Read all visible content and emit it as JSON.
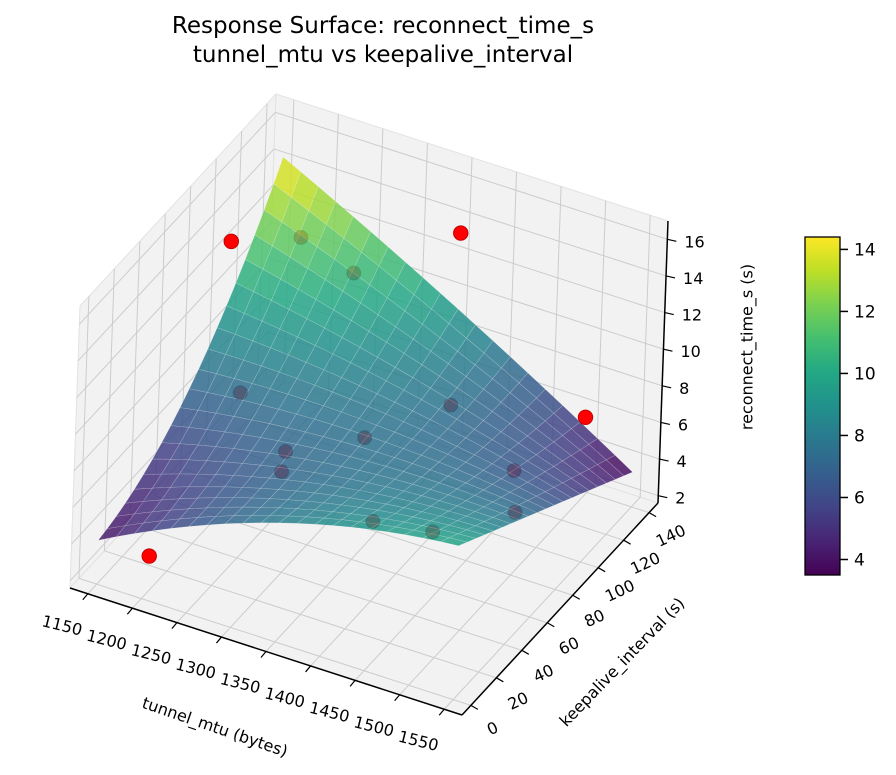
{
  "figure": {
    "title_line1": "Response Surface: reconnect_time_s",
    "title_line2": "tunnel_mtu vs keepalive_interval",
    "background": "#ffffff"
  },
  "chart_data": {
    "type": "surface_3d",
    "title": "Response Surface: reconnect_time_s",
    "subtitle": "tunnel_mtu vs keepalive_interval",
    "xlabel": "tunnel_mtu (bytes)",
    "ylabel": "keepalive_interval (s)",
    "zlabel": "reconnect_time_s (s)",
    "x_ticks": [
      1150,
      1200,
      1250,
      1300,
      1350,
      1400,
      1450,
      1500,
      1550
    ],
    "y_ticks": [
      0,
      20,
      40,
      60,
      80,
      100,
      120,
      140
    ],
    "z_ticks": [
      2,
      4,
      6,
      8,
      10,
      12,
      14,
      16
    ],
    "axis_ranges": {
      "x": [
        1130,
        1570
      ],
      "y": [
        -7,
        147
      ],
      "z": [
        1.6,
        17.0
      ]
    },
    "grid": true,
    "legend": "none",
    "surface": {
      "x_domain": [
        1150,
        1550
      ],
      "y_domain": [
        0,
        140
      ],
      "z_min": 3.5,
      "z_max": 14.4,
      "colormap": "viridis",
      "model_formula": "z = 4.0(1-a)(1-b) + 10.0a(1-b) + 14.4(1-a)b + 3.5ab + 4.4a(1-a)(1-b) + 1.2a(1-a)b - 8.8b(1-b)(1-a),  a=(tunnel_mtu-1150)/400, b=keepalive_interval/140",
      "coeffs": {
        "c00": 4.0,
        "c10": 10.0,
        "c01": 14.4,
        "c11": 3.5,
        "ka": 4.4,
        "kab": 1.2,
        "kb": -8.8
      },
      "z_grid_keepalive_rows": [
        0,
        35,
        70,
        105,
        140
      ],
      "z_grid_mtu_cols": [
        1150,
        1250,
        1350,
        1450,
        1550
      ],
      "z_grid": [
        [
          4.0,
          6.33,
          8.1,
          9.33,
          10.0
        ],
        [
          4.95,
          6.48,
          7.56,
          8.19,
          8.38
        ],
        [
          7.0,
          7.46,
          7.58,
          7.34,
          6.75
        ],
        [
          10.15,
          9.27,
          8.14,
          6.76,
          5.13
        ],
        [
          14.4,
          11.9,
          9.25,
          6.45,
          3.5
        ]
      ]
    },
    "points_above_surface": [
      {
        "tunnel_mtu": 1150,
        "keepalive_interval": 100,
        "reconnect_time_s": 12.8
      },
      {
        "tunnel_mtu": 1350,
        "keepalive_interval": 140,
        "reconnect_time_s": 13.4
      },
      {
        "tunnel_mtu": 1550,
        "keepalive_interval": 100,
        "reconnect_time_s": 9.5
      },
      {
        "tunnel_mtu": 1180,
        "keepalive_interval": 20,
        "reconnect_time_s": 2.1
      }
    ],
    "points_near_surface": [
      {
        "tunnel_mtu": 1200,
        "keepalive_interval": 120,
        "reconnect_time_s": 12.3
      },
      {
        "tunnel_mtu": 1260,
        "keepalive_interval": 120,
        "reconnect_time_s": 11.3
      },
      {
        "tunnel_mtu": 1200,
        "keepalive_interval": 75,
        "reconnect_time_s": 7.2
      },
      {
        "tunnel_mtu": 1400,
        "keepalive_interval": 100,
        "reconnect_time_s": 7.8
      },
      {
        "tunnel_mtu": 1300,
        "keepalive_interval": 40,
        "reconnect_time_s": 8.2
      },
      {
        "tunnel_mtu": 1310,
        "keepalive_interval": 30,
        "reconnect_time_s": 8.0
      },
      {
        "tunnel_mtu": 1360,
        "keepalive_interval": 60,
        "reconnect_time_s": 8.4
      },
      {
        "tunnel_mtu": 1500,
        "keepalive_interval": 80,
        "reconnect_time_s": 7.3
      },
      {
        "tunnel_mtu": 1420,
        "keepalive_interval": 25,
        "reconnect_time_s": 7.4
      },
      {
        "tunnel_mtu": 1480,
        "keepalive_interval": 30,
        "reconnect_time_s": 7.4
      },
      {
        "tunnel_mtu": 1530,
        "keepalive_interval": 60,
        "reconnect_time_s": 7.0
      }
    ],
    "colorbar": {
      "ticks": [
        4,
        6,
        8,
        10,
        12,
        14
      ],
      "vmin": 3.5,
      "vmax": 14.4,
      "colormap": "viridis",
      "position": "right"
    },
    "colors": {
      "point_red": "#ff0000",
      "point_red_edge": "#c40000",
      "pane": "#f2f2f2",
      "pane_edge": "#e2e2e2",
      "gridline": "#cccccc",
      "axis_line": "#000000",
      "tick_label": "#000000",
      "surface_mesh_line": "rgba(255,255,255,0.22)",
      "viridis_stops": [
        "#440154",
        "#482475",
        "#414487",
        "#355f8d",
        "#2a788e",
        "#21918c",
        "#22a884",
        "#44bf70",
        "#7ad151",
        "#bddf26",
        "#fde725"
      ]
    }
  }
}
